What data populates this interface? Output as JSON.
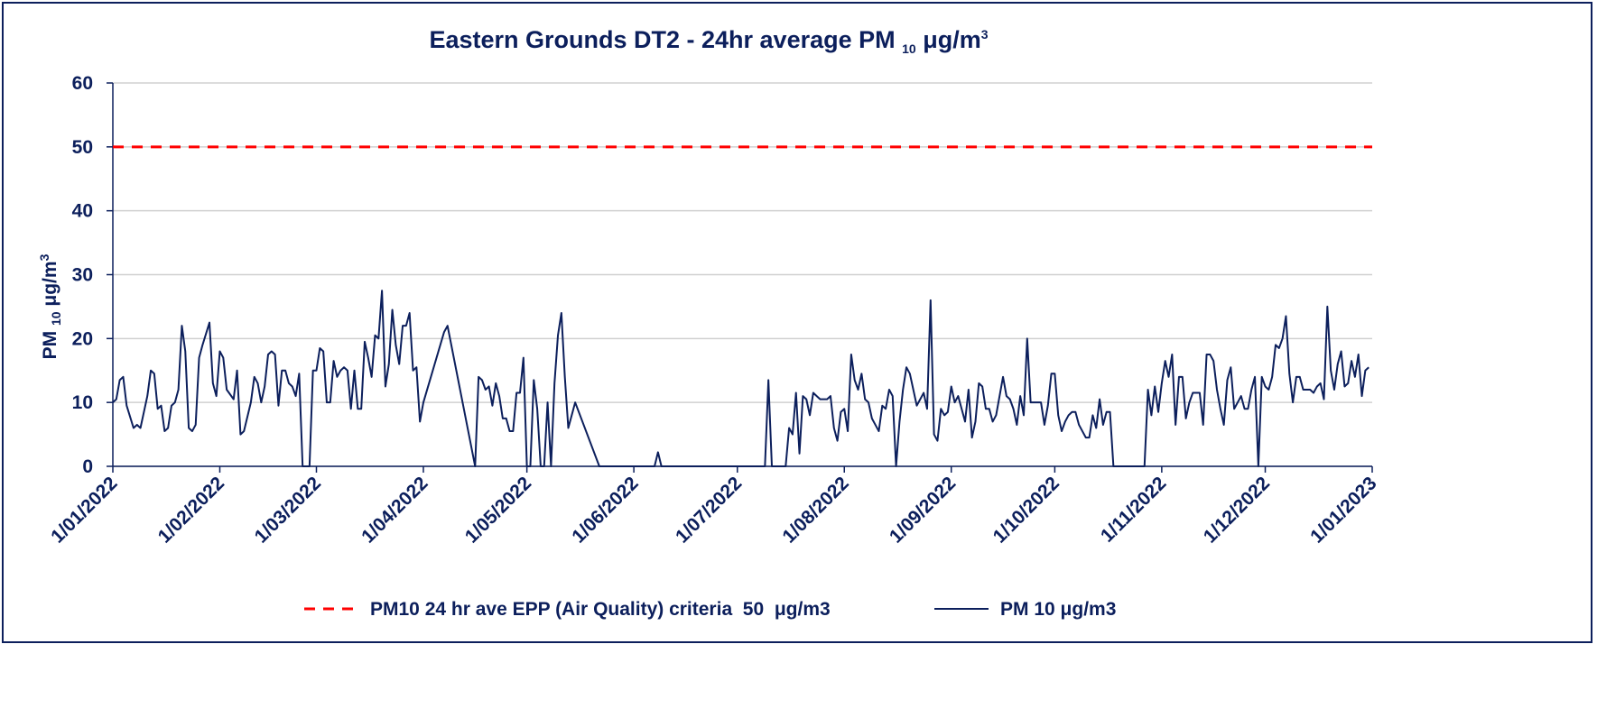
{
  "chart_data": {
    "type": "line",
    "title": [
      "Eastern Grounds DT2 - 24hr average PM ",
      "10",
      " μg/m",
      "3"
    ],
    "y_label": [
      "PM ",
      "10",
      " μg/m",
      "3"
    ],
    "xlim": [
      "2022-01-01",
      "2023-01-01"
    ],
    "xticks": [
      {
        "value": "2022-01-01",
        "label": "1/01/2022"
      },
      {
        "value": "2022-02-01",
        "label": "1/02/2022"
      },
      {
        "value": "2022-03-01",
        "label": "1/03/2022"
      },
      {
        "value": "2022-04-01",
        "label": "1/04/2022"
      },
      {
        "value": "2022-05-01",
        "label": "1/05/2022"
      },
      {
        "value": "2022-06-01",
        "label": "1/06/2022"
      },
      {
        "value": "2022-07-01",
        "label": "1/07/2022"
      },
      {
        "value": "2022-08-01",
        "label": "1/08/2022"
      },
      {
        "value": "2022-09-01",
        "label": "1/09/2022"
      },
      {
        "value": "2022-10-01",
        "label": "1/10/2022"
      },
      {
        "value": "2022-11-01",
        "label": "1/11/2022"
      },
      {
        "value": "2022-12-01",
        "label": "1/12/2022"
      },
      {
        "value": "2023-01-01",
        "label": "1/01/2023"
      }
    ],
    "ylim": [
      0,
      60
    ],
    "yticks": [
      0,
      10,
      20,
      30,
      40,
      50,
      60
    ],
    "grid": true,
    "legend": "bottom",
    "series": [
      {
        "name": "PM10 24 hr ave EPP (Air Quality) criteria  50  μg/m3",
        "color": "#ff0000",
        "dashed": true,
        "x": [
          "2022-01-01",
          "2023-01-01"
        ],
        "values": [
          50,
          50
        ]
      },
      {
        "name": "PM 10 μg/m3",
        "color": "#0c1f5c",
        "dashed": false,
        "x": [
          "2022-01-01",
          "2022-01-02",
          "2022-01-03",
          "2022-01-04",
          "2022-01-05",
          "2022-01-07",
          "2022-01-08",
          "2022-01-09",
          "2022-01-11",
          "2022-01-12",
          "2022-01-13",
          "2022-01-14",
          "2022-01-15",
          "2022-01-16",
          "2022-01-17",
          "2022-01-18",
          "2022-01-19",
          "2022-01-20",
          "2022-01-21",
          "2022-01-22",
          "2022-01-23",
          "2022-01-24",
          "2022-01-25",
          "2022-01-26",
          "2022-01-27",
          "2022-01-29",
          "2022-01-30",
          "2022-01-31",
          "2022-02-01",
          "2022-02-02",
          "2022-02-03",
          "2022-02-05",
          "2022-02-06",
          "2022-02-07",
          "2022-02-08",
          "2022-02-10",
          "2022-02-11",
          "2022-02-12",
          "2022-02-13",
          "2022-02-14",
          "2022-02-15",
          "2022-02-16",
          "2022-02-17",
          "2022-02-18",
          "2022-02-19",
          "2022-02-20",
          "2022-02-21",
          "2022-02-22",
          "2022-02-23",
          "2022-02-24",
          "2022-02-25",
          "2022-02-27",
          "2022-02-28",
          "2022-03-01",
          "2022-03-02",
          "2022-03-03",
          "2022-03-04",
          "2022-03-05",
          "2022-03-06",
          "2022-03-07",
          "2022-03-08",
          "2022-03-09",
          "2022-03-10",
          "2022-03-11",
          "2022-03-12",
          "2022-03-13",
          "2022-03-14",
          "2022-03-15",
          "2022-03-16",
          "2022-03-17",
          "2022-03-18",
          "2022-03-19",
          "2022-03-20",
          "2022-03-21",
          "2022-03-22",
          "2022-03-23",
          "2022-03-24",
          "2022-03-25",
          "2022-03-26",
          "2022-03-27",
          "2022-03-28",
          "2022-03-29",
          "2022-03-30",
          "2022-03-31",
          "2022-04-01",
          "2022-04-07",
          "2022-04-08",
          "2022-04-16",
          "2022-04-17",
          "2022-04-18",
          "2022-04-19",
          "2022-04-20",
          "2022-04-21",
          "2022-04-22",
          "2022-04-23",
          "2022-04-24",
          "2022-04-25",
          "2022-04-26",
          "2022-04-27",
          "2022-04-28",
          "2022-04-29",
          "2022-04-30",
          "2022-05-01",
          "2022-05-02",
          "2022-05-03",
          "2022-05-04",
          "2022-05-05",
          "2022-05-06",
          "2022-05-07",
          "2022-05-08",
          "2022-05-09",
          "2022-05-10",
          "2022-05-11",
          "2022-05-12",
          "2022-05-13",
          "2022-05-15",
          "2022-05-22",
          "2022-06-07",
          "2022-06-08",
          "2022-06-09",
          "2022-07-09",
          "2022-07-10",
          "2022-07-11",
          "2022-07-15",
          "2022-07-16",
          "2022-07-17",
          "2022-07-18",
          "2022-07-19",
          "2022-07-20",
          "2022-07-21",
          "2022-07-22",
          "2022-07-23",
          "2022-07-24",
          "2022-07-25",
          "2022-07-26",
          "2022-07-27",
          "2022-07-28",
          "2022-07-29",
          "2022-07-30",
          "2022-07-31",
          "2022-08-01",
          "2022-08-02",
          "2022-08-03",
          "2022-08-04",
          "2022-08-05",
          "2022-08-06",
          "2022-08-07",
          "2022-08-08",
          "2022-08-09",
          "2022-08-10",
          "2022-08-11",
          "2022-08-12",
          "2022-08-13",
          "2022-08-14",
          "2022-08-15",
          "2022-08-16",
          "2022-08-17",
          "2022-08-18",
          "2022-08-19",
          "2022-08-20",
          "2022-08-21",
          "2022-08-22",
          "2022-08-23",
          "2022-08-24",
          "2022-08-25",
          "2022-08-26",
          "2022-08-27",
          "2022-08-28",
          "2022-08-29",
          "2022-08-30",
          "2022-08-31",
          "2022-09-01",
          "2022-09-02",
          "2022-09-03",
          "2022-09-04",
          "2022-09-05",
          "2022-09-06",
          "2022-09-07",
          "2022-09-08",
          "2022-09-09",
          "2022-09-10",
          "2022-09-11",
          "2022-09-12",
          "2022-09-13",
          "2022-09-14",
          "2022-09-15",
          "2022-09-16",
          "2022-09-17",
          "2022-09-18",
          "2022-09-19",
          "2022-09-20",
          "2022-09-21",
          "2022-09-22",
          "2022-09-23",
          "2022-09-24",
          "2022-09-25",
          "2022-09-26",
          "2022-09-27",
          "2022-09-28",
          "2022-09-29",
          "2022-09-30",
          "2022-10-01",
          "2022-10-02",
          "2022-10-03",
          "2022-10-04",
          "2022-10-05",
          "2022-10-06",
          "2022-10-07",
          "2022-10-08",
          "2022-10-09",
          "2022-10-10",
          "2022-10-11",
          "2022-10-12",
          "2022-10-13",
          "2022-10-14",
          "2022-10-15",
          "2022-10-16",
          "2022-10-17",
          "2022-10-18",
          "2022-10-27",
          "2022-10-28",
          "2022-10-29",
          "2022-10-30",
          "2022-10-31",
          "2022-11-01",
          "2022-11-02",
          "2022-11-03",
          "2022-11-04",
          "2022-11-05",
          "2022-11-06",
          "2022-11-07",
          "2022-11-08",
          "2022-11-09",
          "2022-11-10",
          "2022-11-11",
          "2022-11-12",
          "2022-11-13",
          "2022-11-14",
          "2022-11-15",
          "2022-11-16",
          "2022-11-17",
          "2022-11-18",
          "2022-11-19",
          "2022-11-20",
          "2022-11-21",
          "2022-11-22",
          "2022-11-23",
          "2022-11-24",
          "2022-11-25",
          "2022-11-26",
          "2022-11-27",
          "2022-11-28",
          "2022-11-29",
          "2022-11-30",
          "2022-12-01",
          "2022-12-02",
          "2022-12-03",
          "2022-12-04",
          "2022-12-05",
          "2022-12-06",
          "2022-12-07",
          "2022-12-08",
          "2022-12-09",
          "2022-12-10",
          "2022-12-11",
          "2022-12-12",
          "2022-12-13",
          "2022-12-14",
          "2022-12-15",
          "2022-12-16",
          "2022-12-17",
          "2022-12-18",
          "2022-12-19",
          "2022-12-20",
          "2022-12-21",
          "2022-12-22",
          "2022-12-23",
          "2022-12-24",
          "2022-12-25",
          "2022-12-26",
          "2022-12-27",
          "2022-12-28",
          "2022-12-29",
          "2022-12-30",
          "2022-12-31"
        ],
        "values": [
          10,
          10.5,
          13.5,
          14,
          9.5,
          6,
          6.5,
          6,
          11,
          15,
          14.5,
          9,
          9.5,
          5.5,
          6,
          9.5,
          10,
          12,
          22,
          18,
          6,
          5.5,
          6.5,
          17,
          19,
          22.5,
          13,
          11,
          18,
          17,
          12,
          10.5,
          15,
          5,
          5.5,
          10,
          14,
          13,
          10,
          12.5,
          17.5,
          18,
          17.5,
          9.5,
          15,
          15,
          13,
          12.5,
          11,
          14.5,
          0,
          0,
          15,
          15,
          18.5,
          18,
          10,
          10,
          16.5,
          14,
          15,
          15.5,
          15,
          9,
          15,
          9,
          9,
          19.5,
          17,
          14,
          20.5,
          20,
          27.5,
          12.5,
          16,
          24.5,
          19,
          16,
          22,
          22,
          24,
          15,
          15.5,
          7,
          10,
          21,
          22,
          0,
          14,
          13.5,
          12,
          12.5,
          9.5,
          13,
          11,
          7.5,
          7.5,
          5.5,
          5.5,
          11.5,
          11.5,
          17,
          0,
          0,
          13.5,
          9,
          0,
          0,
          10,
          0,
          13,
          20.5,
          24,
          14,
          6,
          10,
          0,
          0,
          2.2,
          0,
          0,
          13.5,
          0,
          0,
          6,
          5,
          11.5,
          2,
          11,
          10.5,
          8,
          11.5,
          11,
          10.5,
          10.5,
          10.5,
          11,
          6,
          4,
          8.5,
          9,
          5.5,
          17.5,
          13.5,
          12,
          14.5,
          10.5,
          10,
          7.5,
          6.5,
          5.5,
          9.5,
          9,
          12,
          11,
          0,
          7,
          12,
          15.5,
          14.5,
          12,
          9.5,
          10.5,
          11.5,
          9,
          26,
          5,
          4,
          9,
          8,
          8.5,
          12.5,
          10,
          11,
          9,
          7,
          12,
          4.5,
          7,
          13,
          12.5,
          9,
          9,
          7,
          8,
          11,
          14,
          11,
          10.5,
          9,
          6.5,
          11,
          8,
          20,
          10,
          10,
          10,
          10,
          6.5,
          9.5,
          14.5,
          14.5,
          8,
          5.5,
          7,
          8,
          8.5,
          8.5,
          6.5,
          5.5,
          4.5,
          4.5,
          8,
          6,
          10.5,
          6.5,
          8.5,
          8.5,
          0,
          0,
          12,
          8,
          12.5,
          8.5,
          13,
          16.5,
          14,
          17.5,
          6.5,
          14,
          14,
          7.5,
          10,
          11.5,
          11.5,
          11.5,
          6.5,
          17.5,
          17.5,
          16.5,
          12,
          9,
          6.5,
          13.5,
          15.5,
          9,
          10,
          11,
          9,
          9,
          12,
          14,
          0,
          14,
          12.5,
          12,
          14,
          19,
          18.5,
          20,
          23.5,
          14.5,
          10,
          14,
          14,
          12,
          12,
          12,
          11.5,
          12.5,
          13,
          10.5,
          25,
          15,
          12,
          16,
          18,
          12.5,
          13,
          16.5,
          14,
          17.5,
          11,
          15,
          15.5
        ]
      }
    ]
  }
}
